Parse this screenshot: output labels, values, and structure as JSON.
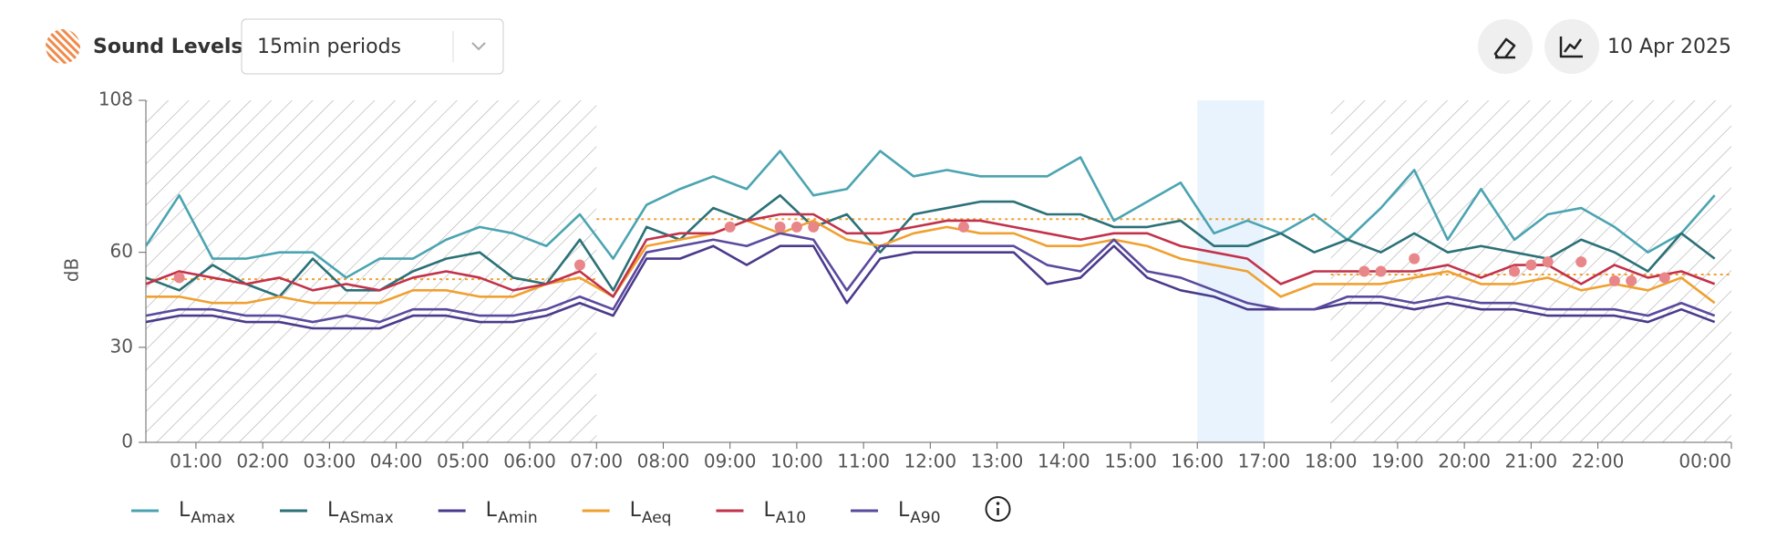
{
  "header": {
    "title": "Sound Levels",
    "period_select": "15min periods",
    "date": "10 Apr 2025"
  },
  "chart_data": {
    "type": "line",
    "y_label": "dB",
    "ylim": [
      0,
      108
    ],
    "yticks": [
      0,
      30,
      60,
      108
    ],
    "xlim": [
      0.25,
      24
    ],
    "xticks": [
      {
        "value": 1,
        "label": "01:00"
      },
      {
        "value": 2,
        "label": "02:00"
      },
      {
        "value": 3,
        "label": "03:00"
      },
      {
        "value": 4,
        "label": "04:00"
      },
      {
        "value": 5,
        "label": "05:00"
      },
      {
        "value": 6,
        "label": "06:00"
      },
      {
        "value": 7,
        "label": "07:00"
      },
      {
        "value": 8,
        "label": "08:00"
      },
      {
        "value": 9,
        "label": "09:00"
      },
      {
        "value": 10,
        "label": "10:00"
      },
      {
        "value": 11,
        "label": "11:00"
      },
      {
        "value": 12,
        "label": "12:00"
      },
      {
        "value": 13,
        "label": "13:00"
      },
      {
        "value": 14,
        "label": "14:00"
      },
      {
        "value": 15,
        "label": "15:00"
      },
      {
        "value": 16,
        "label": "16:00"
      },
      {
        "value": 17,
        "label": "17:00"
      },
      {
        "value": 18,
        "label": "18:00"
      },
      {
        "value": 19,
        "label": "19:00"
      },
      {
        "value": 20,
        "label": "20:00"
      },
      {
        "value": 21,
        "label": "21:00"
      },
      {
        "value": 22,
        "label": "22:00"
      },
      {
        "value": 24,
        "label": "00:00"
      }
    ],
    "shaded_periods": [
      [
        0.25,
        7
      ],
      [
        18,
        24
      ]
    ],
    "highlight": [
      16,
      17
    ],
    "limits": [
      {
        "from": 0.25,
        "to": 7,
        "value": 51.5
      },
      {
        "from": 7,
        "to": 18,
        "value": 70.5
      },
      {
        "from": 18,
        "to": 24,
        "value": 53
      }
    ],
    "limit_color": "#f0a030",
    "x": [
      0.25,
      0.75,
      1.25,
      1.75,
      2.25,
      2.75,
      3.25,
      3.75,
      4.25,
      4.75,
      5.25,
      5.75,
      6.25,
      6.75,
      7.25,
      7.75,
      8.25,
      8.75,
      9.25,
      9.75,
      10.25,
      10.75,
      11.25,
      11.75,
      12.25,
      12.75,
      13.25,
      13.75,
      14.25,
      14.75,
      15.25,
      15.75,
      16.25,
      16.75,
      17.25,
      17.75,
      18.25,
      18.75,
      19.25,
      19.75,
      20.25,
      20.75,
      21.25,
      21.75,
      22.25,
      22.75,
      23.25,
      23.75
    ],
    "series": [
      {
        "symbol": "L",
        "name": "Amax",
        "color": "#4ba4b1",
        "values": [
          62,
          78,
          58,
          58,
          60,
          60,
          52,
          58,
          58,
          64,
          68,
          66,
          62,
          72,
          58,
          75,
          80,
          84,
          80,
          92,
          78,
          80,
          92,
          84,
          86,
          84,
          84,
          84,
          90,
          70,
          76,
          82,
          66,
          70,
          66,
          72,
          64,
          74,
          86,
          64,
          80,
          64,
          72,
          74,
          68,
          60,
          66,
          78
        ]
      },
      {
        "symbol": "L",
        "name": "ASmax",
        "color": "#2b7177",
        "values": [
          52,
          48,
          56,
          50,
          46,
          58,
          48,
          48,
          54,
          58,
          60,
          52,
          50,
          64,
          48,
          68,
          64,
          74,
          70,
          78,
          68,
          72,
          60,
          72,
          74,
          76,
          76,
          72,
          72,
          68,
          68,
          70,
          62,
          62,
          66,
          60,
          64,
          60,
          66,
          60,
          62,
          60,
          58,
          64,
          60,
          54,
          66,
          58
        ]
      },
      {
        "symbol": "L",
        "name": "Amin",
        "color": "#4b3a8c",
        "values": [
          38,
          40,
          40,
          38,
          38,
          36,
          36,
          36,
          40,
          40,
          38,
          38,
          40,
          44,
          40,
          58,
          58,
          62,
          56,
          62,
          62,
          44,
          58,
          60,
          60,
          60,
          60,
          50,
          52,
          62,
          52,
          48,
          46,
          42,
          42,
          42,
          44,
          44,
          42,
          44,
          42,
          42,
          40,
          40,
          40,
          38,
          42,
          38
        ]
      },
      {
        "symbol": "L",
        "name": "Aeq",
        "color": "#f0a030",
        "values": [
          46,
          46,
          44,
          44,
          46,
          44,
          44,
          44,
          48,
          48,
          46,
          46,
          50,
          52,
          46,
          62,
          64,
          66,
          70,
          66,
          70,
          64,
          62,
          66,
          68,
          66,
          66,
          62,
          62,
          64,
          62,
          58,
          56,
          54,
          46,
          50,
          50,
          50,
          52,
          54,
          50,
          50,
          52,
          48,
          50,
          48,
          52,
          44
        ]
      },
      {
        "symbol": "L",
        "name": "A10",
        "color": "#c2324a",
        "values": [
          50,
          54,
          52,
          50,
          52,
          48,
          50,
          48,
          52,
          54,
          52,
          48,
          50,
          54,
          46,
          64,
          66,
          66,
          70,
          72,
          72,
          66,
          66,
          68,
          70,
          70,
          68,
          66,
          64,
          66,
          66,
          62,
          60,
          58,
          50,
          54,
          54,
          54,
          54,
          56,
          52,
          56,
          56,
          50,
          56,
          52,
          54,
          50
        ]
      },
      {
        "symbol": "L",
        "name": "A90",
        "color": "#5a4a9e",
        "values": [
          40,
          42,
          42,
          40,
          40,
          38,
          40,
          38,
          42,
          42,
          40,
          40,
          42,
          46,
          42,
          60,
          62,
          64,
          62,
          66,
          64,
          48,
          62,
          62,
          62,
          62,
          62,
          56,
          54,
          64,
          54,
          52,
          48,
          44,
          42,
          42,
          46,
          46,
          44,
          46,
          44,
          44,
          42,
          42,
          42,
          40,
          44,
          40
        ]
      }
    ],
    "markers": {
      "color": "#e8868a",
      "x": [
        0.75,
        6.75,
        9.0,
        9.75,
        10.0,
        10.25,
        12.5,
        18.5,
        18.75,
        19.25,
        20.75,
        21.0,
        21.25,
        21.75,
        22.25,
        22.5,
        23.0
      ],
      "values": [
        52,
        56,
        68,
        68,
        68,
        68,
        68,
        54,
        54,
        58,
        54,
        56,
        57,
        57,
        51,
        51,
        52
      ]
    }
  }
}
